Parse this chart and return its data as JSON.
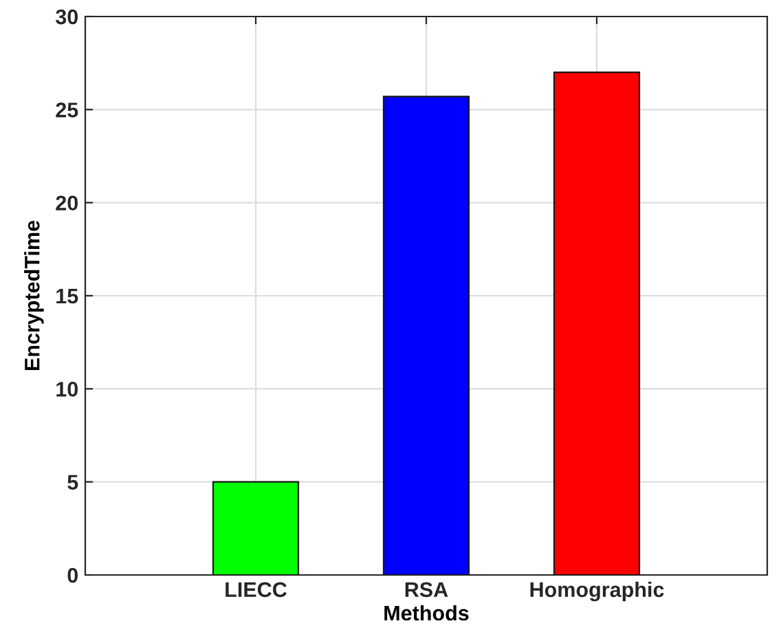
{
  "chart_data": {
    "type": "bar",
    "xlabel": "Methods",
    "ylabel": "EncryptedTime",
    "categories": [
      "LIECC",
      "RSA",
      "Homographic"
    ],
    "values": [
      5,
      25.7,
      27.0
    ],
    "colors": [
      "#00ff00",
      "#0000ff",
      "#ff0000"
    ],
    "ylim": [
      0,
      30
    ],
    "yticks": [
      0,
      5,
      10,
      15,
      20,
      25,
      30
    ],
    "grid": true
  }
}
